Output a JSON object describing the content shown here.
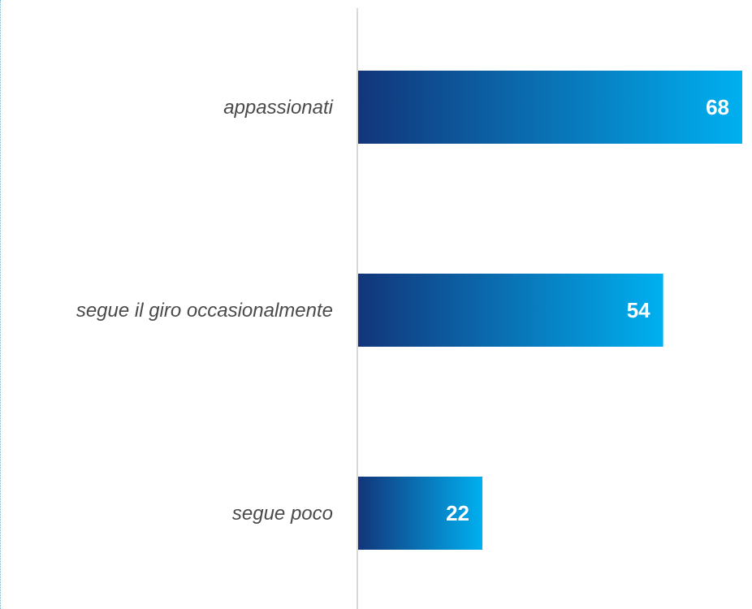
{
  "chart_data": {
    "type": "bar",
    "orientation": "horizontal",
    "categories": [
      "appassionati",
      "segue il giro occasionalmente",
      "segue poco"
    ],
    "values": [
      68,
      54,
      22
    ],
    "value_labels": [
      "68",
      "54",
      "22"
    ],
    "xlim": [
      0,
      68
    ],
    "grid": false,
    "legend": "none",
    "colors": {
      "bar_gradient_start": "#12357a",
      "bar_gradient_end": "#00b0f0",
      "axis_line": "#d9d9d9",
      "label_text": "#4a4a4a",
      "value_text": "#ffffff",
      "frame_border": "#6fb3d9"
    }
  }
}
